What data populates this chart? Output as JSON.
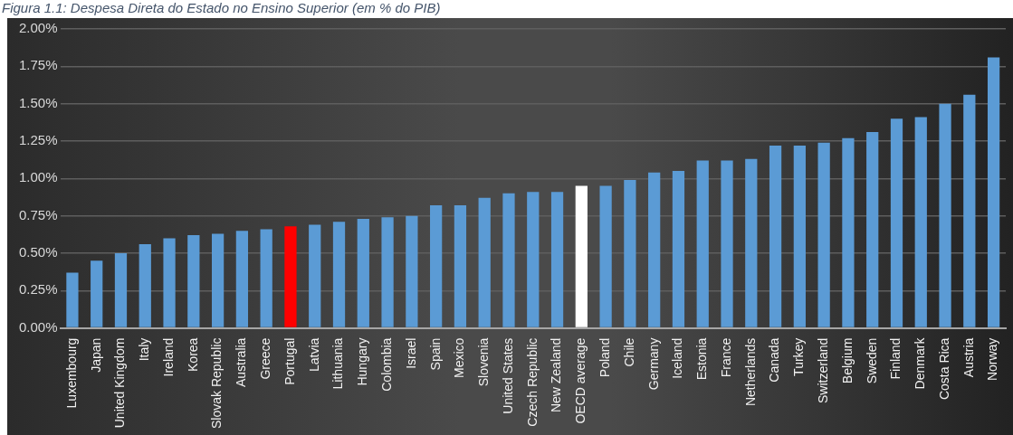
{
  "chart_data": {
    "type": "bar",
    "title": "Figura 1.1: Despesa Direta do Estado no Ensino Superior (em % do PIB)",
    "categories": [
      "Luxembourg",
      "Japan",
      "United Kingdom",
      "Italy",
      "Ireland",
      "Korea",
      "Slovak Republic",
      "Australia",
      "Greece",
      "Portugal",
      "Latvia",
      "Lithuania",
      "Hungary",
      "Colombia",
      "Israel",
      "Spain",
      "Mexico",
      "Slovenia",
      "United States",
      "Czech Republic",
      "New Zealand",
      "OECD average",
      "Poland",
      "Chile",
      "Germany",
      "Iceland",
      "Estonia",
      "France",
      "Netherlands",
      "Canada",
      "Turkey",
      "Switzerland",
      "Belgium",
      "Sweden",
      "Finland",
      "Denmark",
      "Costa Rica",
      "Austria",
      "Norway"
    ],
    "values": [
      0.37,
      0.45,
      0.5,
      0.56,
      0.6,
      0.62,
      0.63,
      0.65,
      0.66,
      0.68,
      0.69,
      0.71,
      0.73,
      0.74,
      0.75,
      0.82,
      0.82,
      0.87,
      0.9,
      0.91,
      0.91,
      0.95,
      0.95,
      0.99,
      1.04,
      1.05,
      1.12,
      1.12,
      1.13,
      1.22,
      1.22,
      1.24,
      1.27,
      1.31,
      1.4,
      1.41,
      1.5,
      1.56,
      1.81
    ],
    "colors": [
      "#5b9bd5",
      "#5b9bd5",
      "#5b9bd5",
      "#5b9bd5",
      "#5b9bd5",
      "#5b9bd5",
      "#5b9bd5",
      "#5b9bd5",
      "#5b9bd5",
      "#ff0000",
      "#5b9bd5",
      "#5b9bd5",
      "#5b9bd5",
      "#5b9bd5",
      "#5b9bd5",
      "#5b9bd5",
      "#5b9bd5",
      "#5b9bd5",
      "#5b9bd5",
      "#5b9bd5",
      "#5b9bd5",
      "#ffffff",
      "#5b9bd5",
      "#5b9bd5",
      "#5b9bd5",
      "#5b9bd5",
      "#5b9bd5",
      "#5b9bd5",
      "#5b9bd5",
      "#5b9bd5",
      "#5b9bd5",
      "#5b9bd5",
      "#5b9bd5",
      "#5b9bd5",
      "#5b9bd5",
      "#5b9bd5",
      "#5b9bd5",
      "#5b9bd5",
      "#5b9bd5"
    ],
    "ylim": [
      0,
      2
    ],
    "yticks": [
      {
        "value": 0,
        "label": "0.00%"
      },
      {
        "value": 0.25,
        "label": "0.25%"
      },
      {
        "value": 0.5,
        "label": "0.50%"
      },
      {
        "value": 0.75,
        "label": "0.75%"
      },
      {
        "value": 1,
        "label": "1.00%"
      },
      {
        "value": 1.25,
        "label": "1.25%"
      },
      {
        "value": 1.5,
        "label": "1.50%"
      },
      {
        "value": 1.75,
        "label": "1.75%"
      },
      {
        "value": 2,
        "label": "2.00%"
      }
    ],
    "grid": "y",
    "legend": false
  }
}
